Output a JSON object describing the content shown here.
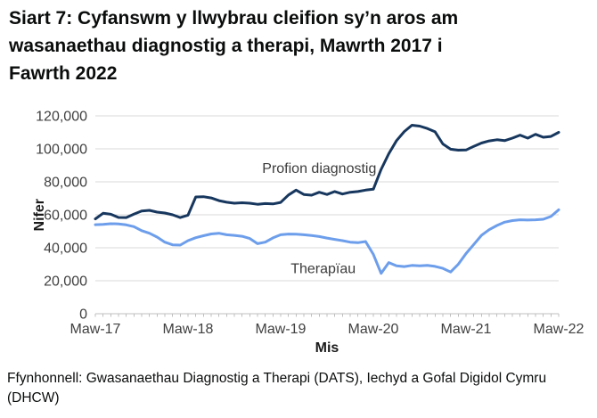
{
  "title": {
    "lines": [
      "Siart 7: Cyfanswm y llwybrau cleifion sy’n aros am",
      "wasanaethau diagnostig a therapi, Mawrth 2017 i",
      "Fawrth 2022"
    ]
  },
  "footer": {
    "source": "Ffynhonnell: Gwasanaethau Diagnostig a Therapi (DATS), Iechyd a Gofal Digidol Cymru (DHCW)"
  },
  "chart_data": {
    "type": "line",
    "title": "Siart 7: Cyfanswm y llwybrau cleifion sy’n aros am wasanaethau diagnostig a therapi, Mawrth 2017 i Fawrth 2022",
    "xlabel": "Mis",
    "ylabel": "Nifer",
    "ylim": [
      0,
      120000
    ],
    "x_range": [
      "Maw-17",
      "Maw-22"
    ],
    "n_points": 61,
    "grid": "horizontal",
    "legend_position": "inline-labels",
    "colors": {
      "gridline": "#d9d9d9",
      "axis": "#bfbfbf",
      "tick_text": "#404040"
    },
    "y_ticks": [
      {
        "value": 0,
        "label": "0"
      },
      {
        "value": 20000,
        "label": "20,000"
      },
      {
        "value": 40000,
        "label": "40,000"
      },
      {
        "value": 60000,
        "label": "60,000"
      },
      {
        "value": 80000,
        "label": "80,000"
      },
      {
        "value": 100000,
        "label": "100,000"
      },
      {
        "value": 120000,
        "label": "120,000"
      }
    ],
    "x_ticks": [
      {
        "index": 0,
        "label": "Maw-17"
      },
      {
        "index": 12,
        "label": "Maw-18"
      },
      {
        "index": 24,
        "label": "Maw-19"
      },
      {
        "index": 36,
        "label": "Maw-20"
      },
      {
        "index": 48,
        "label": "Maw-21"
      },
      {
        "index": 60,
        "label": "Maw-22"
      }
    ],
    "series": [
      {
        "name": "Profion diagnostig",
        "color": "#17375e",
        "values": [
          57500,
          60900,
          60300,
          58400,
          58300,
          60400,
          62300,
          62700,
          61600,
          61100,
          60000,
          58300,
          59800,
          70800,
          71000,
          70200,
          68600,
          67600,
          67000,
          67300,
          67000,
          66400,
          66800,
          66600,
          67500,
          72000,
          75000,
          72300,
          71900,
          73700,
          72300,
          74100,
          72600,
          73700,
          74100,
          75000,
          75500,
          87500,
          97000,
          105000,
          110500,
          114300,
          113800,
          112300,
          110300,
          103000,
          99800,
          99200,
          99300,
          101500,
          103500,
          104800,
          105500,
          105000,
          106500,
          108300,
          106500,
          108800,
          107000,
          107500,
          110000
        ]
      },
      {
        "name": "Therapïau",
        "color": "#6d9eeb",
        "values": [
          54000,
          54200,
          54600,
          54500,
          53900,
          52800,
          50400,
          48800,
          46500,
          43400,
          41800,
          41600,
          44300,
          46100,
          47300,
          48400,
          48800,
          47900,
          47500,
          47000,
          45600,
          42500,
          43400,
          46000,
          47900,
          48300,
          48200,
          47900,
          47400,
          46800,
          45900,
          45100,
          44300,
          43400,
          43100,
          43800,
          36000,
          24500,
          31000,
          29000,
          28600,
          29300,
          29100,
          29300,
          28700,
          27500,
          25300,
          30000,
          36500,
          42000,
          47500,
          51000,
          53500,
          55500,
          56500,
          57000,
          56800,
          57000,
          57300,
          59000,
          63000
        ]
      }
    ],
    "annotations": [
      {
        "series_index": 0,
        "x_index": 29.0,
        "y": 88000
      },
      {
        "series_index": 1,
        "x_index": 29.5,
        "y": 27200
      }
    ]
  }
}
